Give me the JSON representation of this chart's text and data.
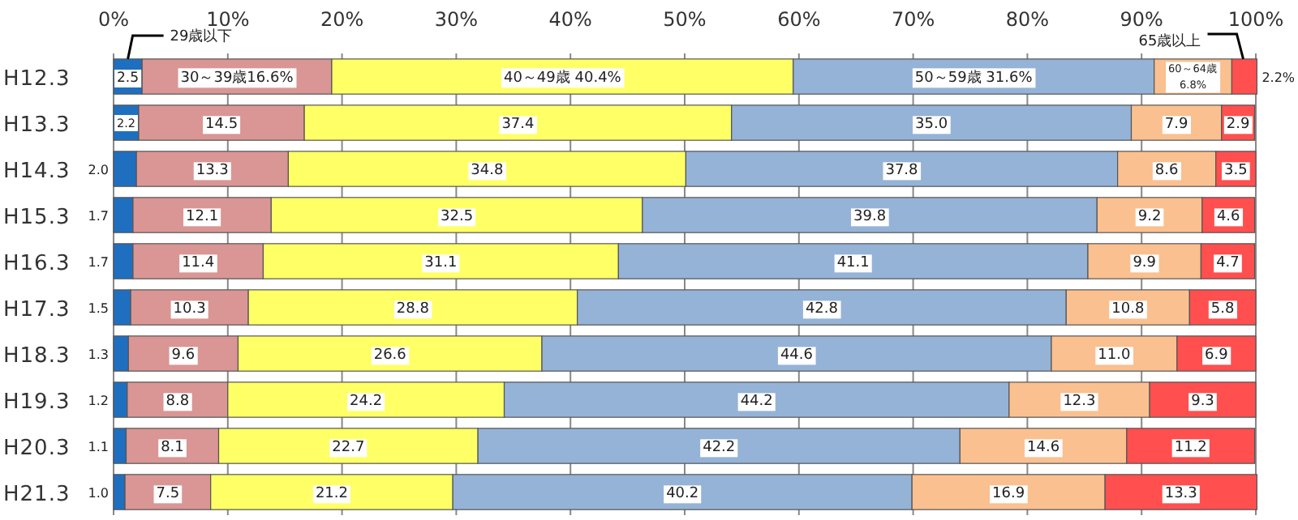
{
  "chart_data": {
    "type": "bar",
    "orientation": "horizontal",
    "stacked": true,
    "grid": "x",
    "categories": [
      "H12.3",
      "H13.3",
      "H14.3",
      "H15.3",
      "H16.3",
      "H17.3",
      "H18.3",
      "H19.3",
      "H20.3",
      "H21.3"
    ],
    "xlim": [
      0,
      100
    ],
    "xticks": [
      {
        "value": 0,
        "label": "0%"
      },
      {
        "value": 10,
        "label": "10%"
      },
      {
        "value": 20,
        "label": "20%"
      },
      {
        "value": 30,
        "label": "30%"
      },
      {
        "value": 40,
        "label": "40%"
      },
      {
        "value": 50,
        "label": "50%"
      },
      {
        "value": 60,
        "label": "60%"
      },
      {
        "value": 70,
        "label": "70%"
      },
      {
        "value": 80,
        "label": "80%"
      },
      {
        "value": 90,
        "label": "90%"
      },
      {
        "value": 100,
        "label": "100%"
      }
    ],
    "series": [
      {
        "name": "29歳以下",
        "color": "#1f6fc0",
        "values": [
          2.5,
          2.2,
          2.0,
          1.7,
          1.7,
          1.5,
          1.3,
          1.2,
          1.1,
          1.0
        ],
        "value_labels": [
          "2.5",
          "2.2",
          "2.0",
          "1.7",
          "1.7",
          "1.5",
          "1.3",
          "1.2",
          "1.1",
          "1.0"
        ]
      },
      {
        "color": "#d99694",
        "values": [
          16.6,
          14.5,
          13.3,
          12.1,
          11.4,
          10.3,
          9.6,
          8.8,
          8.1,
          7.5
        ],
        "value_labels": [
          "30～39歳16.6%",
          "14.5",
          "13.3",
          "12.1",
          "11.4",
          "10.3",
          "9.6",
          "8.8",
          "8.1",
          "7.5"
        ]
      },
      {
        "color": "#ffff66",
        "values": [
          40.4,
          37.4,
          34.8,
          32.5,
          31.1,
          28.8,
          26.6,
          24.2,
          22.7,
          21.2
        ],
        "value_labels": [
          "40～49歳 40.4%",
          "37.4",
          "34.8",
          "32.5",
          "31.1",
          "28.8",
          "26.6",
          "24.2",
          "22.7",
          "21.2"
        ]
      },
      {
        "color": "#95b3d7",
        "values": [
          31.6,
          35.0,
          37.8,
          39.8,
          41.1,
          42.8,
          44.6,
          44.2,
          42.2,
          40.2
        ],
        "value_labels": [
          "50～59歳 31.6%",
          "35.0",
          "37.8",
          "39.8",
          "41.1",
          "42.8",
          "44.6",
          "44.2",
          "42.2",
          "40.2"
        ]
      },
      {
        "color": "#fac090",
        "values": [
          6.8,
          7.9,
          8.6,
          9.2,
          9.9,
          10.8,
          11.0,
          12.3,
          14.6,
          16.9
        ],
        "value_labels": [
          "60～64歳\n6.8%",
          "7.9",
          "8.6",
          "9.2",
          "9.9",
          "10.8",
          "11.0",
          "12.3",
          "14.6",
          "16.9"
        ]
      },
      {
        "name": "65歳以上",
        "color": "#ff4f4f",
        "values": [
          2.2,
          2.9,
          3.5,
          4.6,
          4.7,
          5.8,
          6.9,
          9.3,
          11.2,
          13.3
        ],
        "value_labels": [
          "2.2%",
          "2.9",
          "3.5",
          "4.6",
          "4.7",
          "5.8",
          "6.9",
          "9.3",
          "11.2",
          "13.3"
        ]
      }
    ]
  }
}
